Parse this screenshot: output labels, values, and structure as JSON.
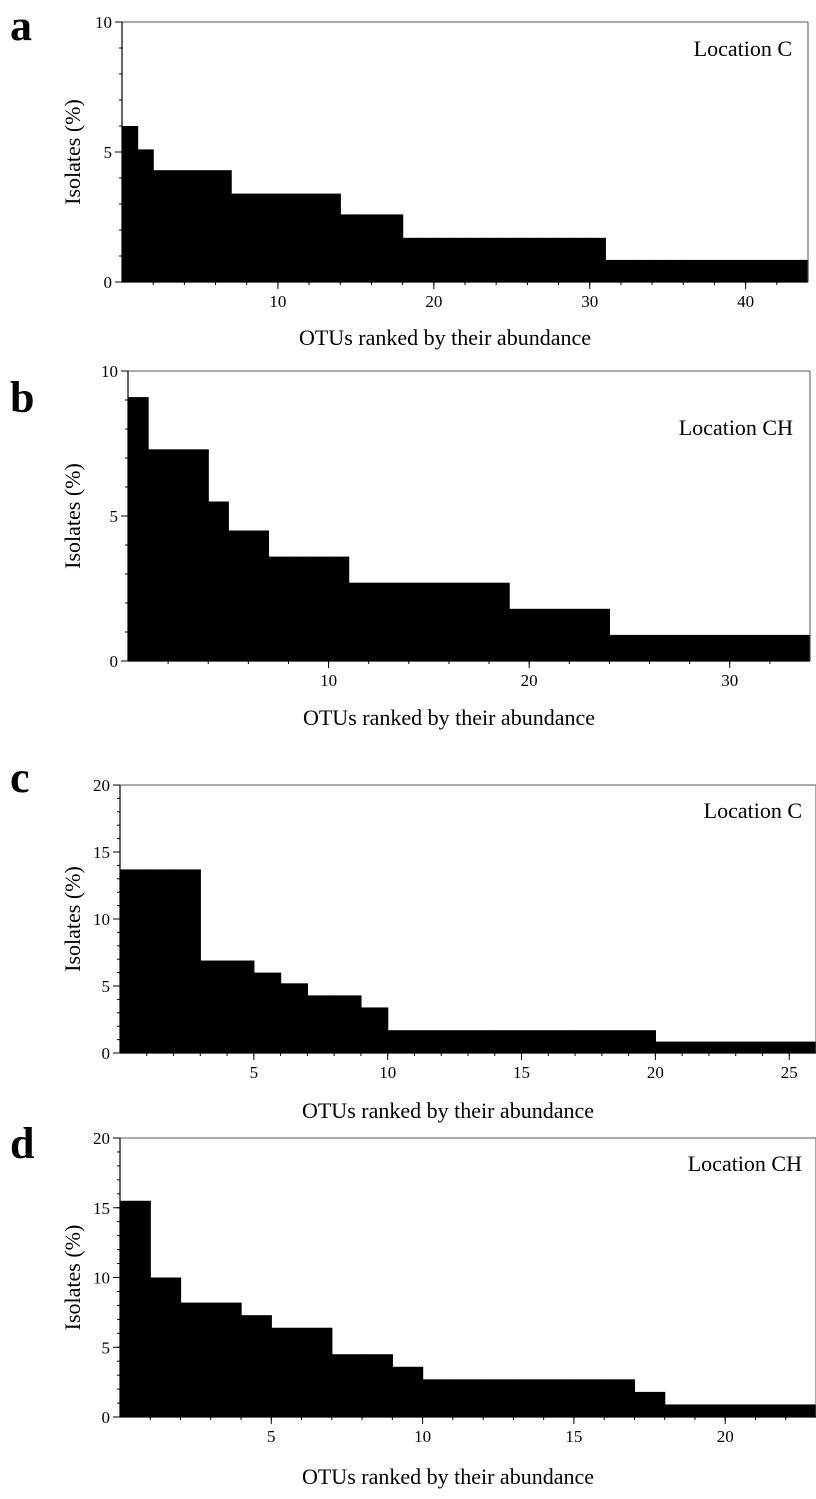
{
  "chart_data": [
    {
      "panel": "a",
      "type": "bar",
      "label": "Location C",
      "xlabel": "OTUs ranked by their abundance",
      "ylabel": "Isolates (%)",
      "xlim": [
        0,
        44
      ],
      "ylim": [
        0,
        10
      ],
      "xticks": [
        10,
        20,
        30,
        40
      ],
      "yticks": [
        0,
        5,
        10
      ],
      "y_minor_step": 1,
      "x_minor_step": 2,
      "values": [
        6.0,
        5.1,
        4.3,
        4.3,
        4.3,
        4.3,
        4.3,
        3.4,
        3.4,
        3.4,
        3.4,
        3.4,
        3.4,
        3.4,
        2.6,
        2.6,
        2.6,
        2.6,
        1.7,
        1.7,
        1.7,
        1.7,
        1.7,
        1.7,
        1.7,
        1.7,
        1.7,
        1.7,
        1.7,
        1.7,
        1.7,
        0.85,
        0.85,
        0.85,
        0.85,
        0.85,
        0.85,
        0.85,
        0.85,
        0.85,
        0.85,
        0.85,
        0.85,
        0.85
      ]
    },
    {
      "panel": "b",
      "type": "bar",
      "label": "Location CH",
      "xlabel": "OTUs ranked by their abundance",
      "ylabel": "Isolates (%)",
      "xlim": [
        0,
        34
      ],
      "ylim": [
        0,
        10
      ],
      "xticks": [
        10,
        20,
        30
      ],
      "yticks": [
        0,
        5,
        10
      ],
      "y_minor_step": 1,
      "x_minor_step": 2,
      "values": [
        9.1,
        7.3,
        7.3,
        7.3,
        5.5,
        4.5,
        4.5,
        3.6,
        3.6,
        3.6,
        3.6,
        2.7,
        2.7,
        2.7,
        2.7,
        2.7,
        2.7,
        2.7,
        2.7,
        1.8,
        1.8,
        1.8,
        1.8,
        1.8,
        0.9,
        0.9,
        0.9,
        0.9,
        0.9,
        0.9,
        0.9,
        0.9,
        0.9,
        0.9
      ]
    },
    {
      "panel": "c",
      "type": "bar",
      "label": "Location C",
      "xlabel": "OTUs ranked by their abundance",
      "ylabel": "Isolates (%)",
      "xlim": [
        0,
        26
      ],
      "ylim": [
        0,
        20
      ],
      "xticks": [
        5,
        10,
        15,
        20,
        25
      ],
      "yticks": [
        0,
        5,
        10,
        15,
        20
      ],
      "y_minor_step": 1,
      "x_minor_step": 1,
      "values": [
        13.7,
        13.7,
        13.7,
        6.9,
        6.9,
        6.0,
        5.2,
        4.3,
        4.3,
        3.4,
        1.7,
        1.7,
        1.7,
        1.7,
        1.7,
        1.7,
        1.7,
        1.7,
        1.7,
        1.7,
        0.85,
        0.85,
        0.85,
        0.85,
        0.85,
        0.85
      ]
    },
    {
      "panel": "d",
      "type": "bar",
      "label": "Location CH",
      "xlabel": "OTUs ranked by their abundance",
      "ylabel": "Isolates (%)",
      "xlim": [
        0,
        23
      ],
      "ylim": [
        0,
        20
      ],
      "xticks": [
        5,
        10,
        15,
        20
      ],
      "yticks": [
        0,
        5,
        10,
        15,
        20
      ],
      "y_minor_step": 1,
      "x_minor_step": 1,
      "values": [
        15.5,
        10.0,
        8.2,
        8.2,
        7.3,
        6.4,
        6.4,
        4.5,
        4.5,
        3.6,
        2.7,
        2.7,
        2.7,
        2.7,
        2.7,
        2.7,
        2.7,
        1.8,
        0.9,
        0.9,
        0.9,
        0.9,
        0.9
      ]
    }
  ]
}
